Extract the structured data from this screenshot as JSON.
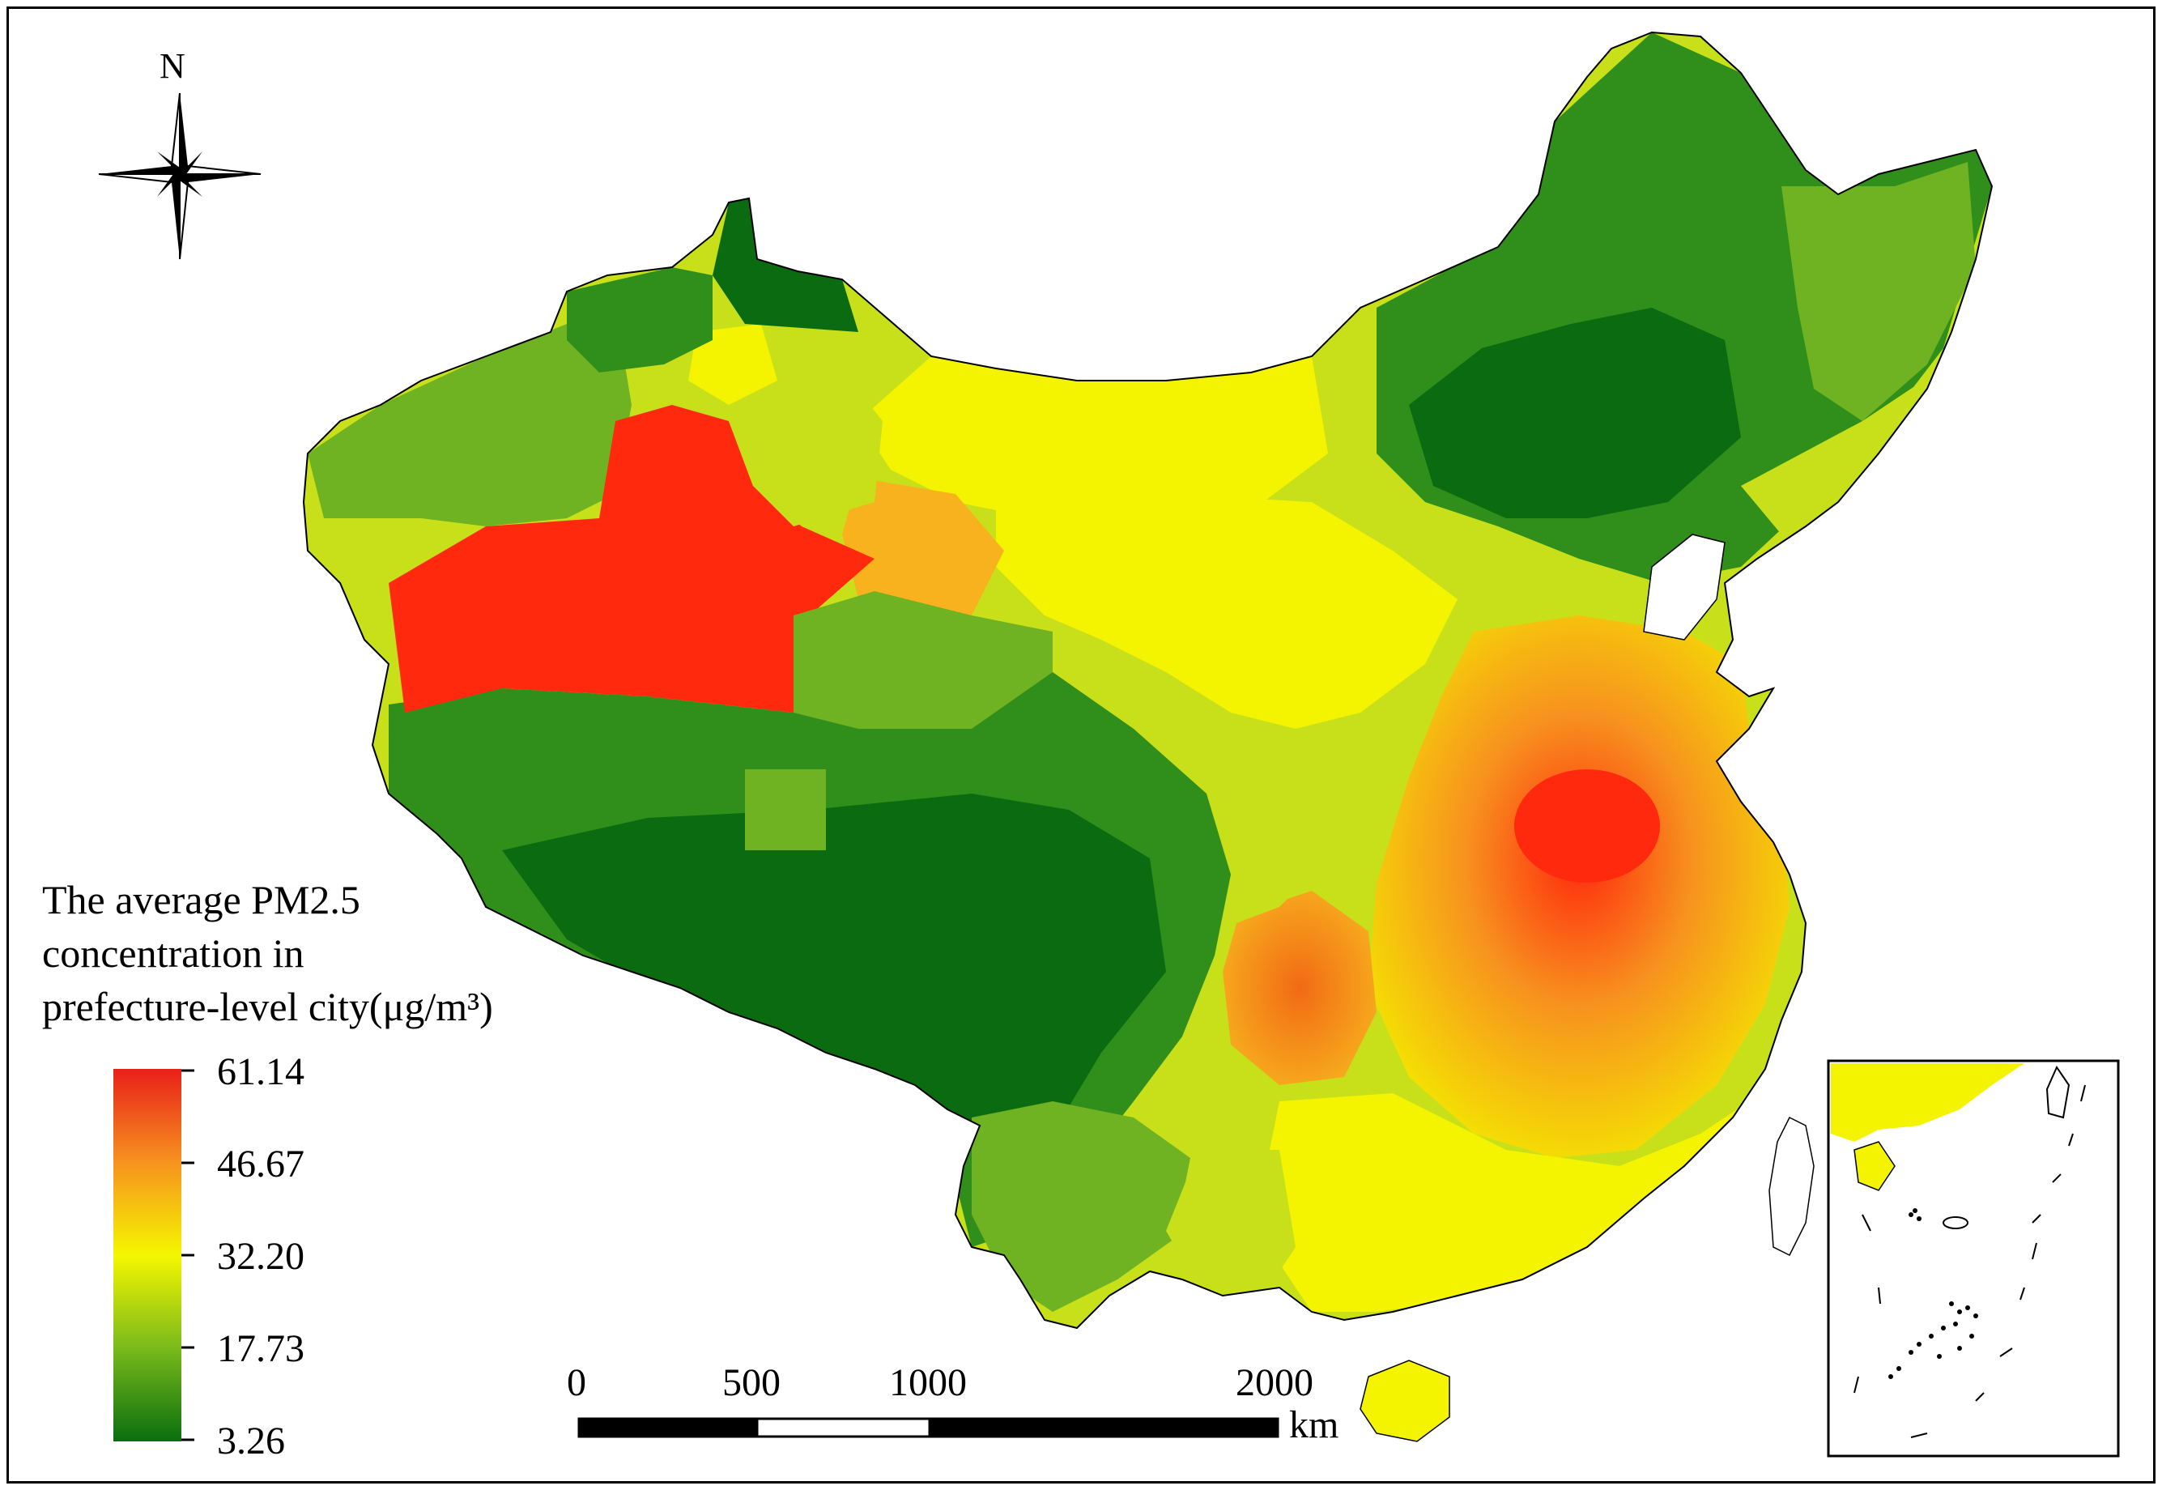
{
  "legend": {
    "title_lines": [
      "The average PM2.5",
      "concentration in",
      "prefecture-level city(μg/m³)"
    ],
    "ticks": [
      "61.14",
      "46.67",
      "32.20",
      "17.73",
      "3.26"
    ],
    "color_stops": [
      "#e8201a",
      "#f7921e",
      "#f4f700",
      "#79ba1b",
      "#0a6e0f"
    ]
  },
  "scale_bar": {
    "labels": [
      "0",
      "500",
      "1000",
      "2000"
    ],
    "unit": "km"
  },
  "north_arrow": {
    "label": "N",
    "icon": "compass-rose-icon"
  },
  "colors": {
    "very_low": "#0b6b10",
    "low": "#2f8f1a",
    "low_mid": "#6fb222",
    "mid": "#c8e01a",
    "mid_high": "#f4f300",
    "high": "#f7b21e",
    "very_high": "#f26a14",
    "max": "#ff2a0e"
  }
}
